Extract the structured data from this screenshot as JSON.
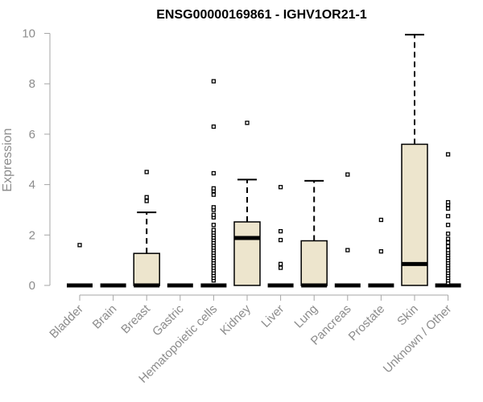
{
  "chart_data": {
    "type": "boxplot",
    "title": "ENSG00000169861 - IGHV1OR21-1",
    "xlabel": "",
    "ylabel": "Expression",
    "ylim": [
      0,
      10
    ],
    "yticks": [
      0,
      2,
      4,
      6,
      8,
      10
    ],
    "box_fill": "#ede5cd",
    "categories": [
      "Bladder",
      "Brain",
      "Breast",
      "Gastric",
      "Hematopoietic cells",
      "Kidney",
      "Liver",
      "Lung",
      "Pancreas",
      "Prostate",
      "Skin",
      "Unknown / Other"
    ],
    "boxes": [
      {
        "q1": 0,
        "median": 0,
        "q3": 0,
        "whisker_low": 0,
        "whisker_high": 0,
        "outliers": [
          1.6
        ]
      },
      {
        "q1": 0,
        "median": 0,
        "q3": 0,
        "whisker_low": 0,
        "whisker_high": 0,
        "outliers": []
      },
      {
        "q1": 0,
        "median": 0,
        "q3": 1.27,
        "whisker_low": 0,
        "whisker_high": 2.9,
        "outliers": [
          3.35,
          3.5,
          4.5
        ]
      },
      {
        "q1": 0,
        "median": 0,
        "q3": 0,
        "whisker_low": 0,
        "whisker_high": 0,
        "outliers": []
      },
      {
        "q1": 0,
        "median": 0,
        "q3": 0,
        "whisker_low": 0,
        "whisker_high": 0,
        "outliers": [
          0.2,
          0.3,
          0.4,
          0.5,
          0.6,
          0.7,
          0.8,
          0.9,
          1.0,
          1.1,
          1.2,
          1.3,
          1.4,
          1.5,
          1.6,
          1.7,
          1.8,
          1.9,
          2.0,
          2.1,
          2.2,
          2.4,
          2.7,
          2.8,
          3.0,
          3.1,
          3.6,
          3.75,
          3.85,
          4.45,
          6.3,
          8.1
        ]
      },
      {
        "q1": 0,
        "median": 1.88,
        "q3": 2.52,
        "whisker_low": 0,
        "whisker_high": 4.2,
        "outliers": [
          6.45
        ]
      },
      {
        "q1": 0,
        "median": 0,
        "q3": 0,
        "whisker_low": 0,
        "whisker_high": 0,
        "outliers": [
          0.7,
          0.85,
          1.8,
          2.15,
          3.9
        ]
      },
      {
        "q1": 0,
        "median": 0,
        "q3": 1.77,
        "whisker_low": 0,
        "whisker_high": 4.15,
        "outliers": []
      },
      {
        "q1": 0,
        "median": 0,
        "q3": 0,
        "whisker_low": 0,
        "whisker_high": 0,
        "outliers": [
          1.4,
          4.4
        ]
      },
      {
        "q1": 0,
        "median": 0,
        "q3": 0,
        "whisker_low": 0,
        "whisker_high": 0,
        "outliers": [
          1.35,
          2.6
        ]
      },
      {
        "q1": 0,
        "median": 0.85,
        "q3": 5.6,
        "whisker_low": 0,
        "whisker_high": 9.95,
        "outliers": []
      },
      {
        "q1": 0,
        "median": 0,
        "q3": 0,
        "whisker_low": 0,
        "whisker_high": 0,
        "outliers": [
          0.1,
          0.2,
          0.3,
          0.4,
          0.5,
          0.6,
          0.7,
          0.8,
          0.9,
          1.0,
          1.1,
          1.2,
          1.3,
          1.4,
          1.55,
          1.7,
          1.85,
          2.05,
          2.4,
          2.75,
          3.05,
          3.2,
          3.3,
          5.2
        ]
      }
    ]
  }
}
